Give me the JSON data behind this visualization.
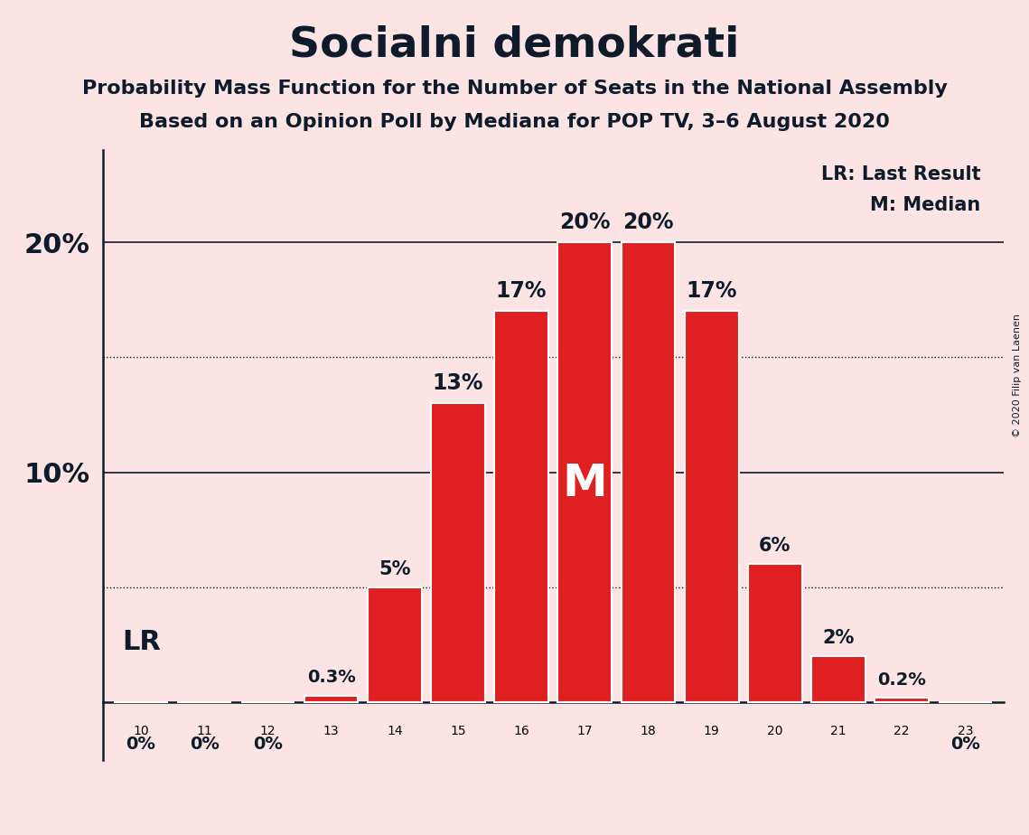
{
  "title": "Socialni demokrati",
  "subtitle1": "Probability Mass Function for the Number of Seats in the National Assembly",
  "subtitle2": "Based on an Opinion Poll by Mediana for POP TV, 3–6 August 2020",
  "copyright": "© 2020 Filip van Laenen",
  "categories": [
    10,
    11,
    12,
    13,
    14,
    15,
    16,
    17,
    18,
    19,
    20,
    21,
    22,
    23
  ],
  "values": [
    0,
    0,
    0,
    0.3,
    5,
    13,
    17,
    20,
    20,
    17,
    6,
    2,
    0.2,
    0
  ],
  "bar_color": "#e02020",
  "bar_edge_color": "#ffffff",
  "background_color": "#fce4e4",
  "text_color": "#0d1b2a",
  "dotted_lines": [
    5,
    15
  ],
  "solid_lines": [
    10,
    20
  ],
  "median_seat": 17,
  "legend_lr": "LR: Last Result",
  "legend_m": "M: Median",
  "bar_labels": [
    "0%",
    "0%",
    "0%",
    "0.3%",
    "5%",
    "13%",
    "17%",
    "20%",
    "20%",
    "17%",
    "6%",
    "2%",
    "0.2%",
    "0%"
  ],
  "lr_label": "LR"
}
